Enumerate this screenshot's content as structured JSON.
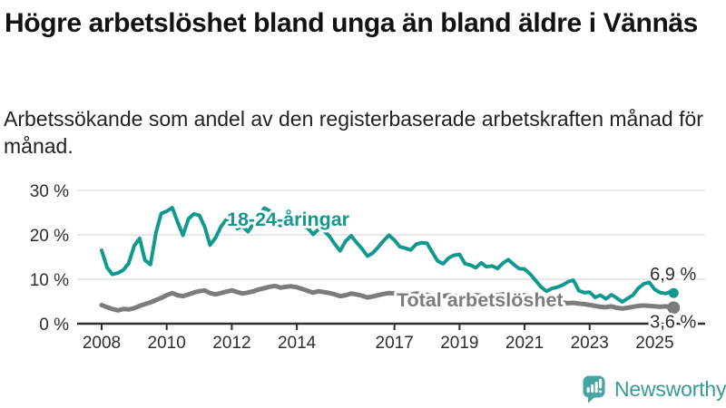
{
  "header": {
    "title": "Högre arbetslöshet bland unga än bland äldre i Vännäs",
    "subtitle": "Arbetssökande som andel av den registerbaserade arbetskraften månad för månad."
  },
  "colors": {
    "accent_teal": "#12998f",
    "line_gray": "#7c7c7c",
    "grid": "#d9d9d9",
    "axis": "#2e2e2e",
    "value_label": "#2d2d2d",
    "logo_bubble": "#47a5a1",
    "logo_text": "#379b96"
  },
  "chart_data": {
    "type": "line",
    "title": "Högre arbetslöshet bland unga än bland äldre i Vännäs",
    "subtitle": "Arbetssökande som andel av den registerbaserade arbetskraften månad för månad.",
    "grid": "horizontal",
    "legend_position": "inline-labels",
    "x_axis": {
      "ticks": [
        2008,
        2010,
        2012,
        2014,
        2017,
        2019,
        2021,
        2023,
        2025
      ],
      "labels": [
        "2008",
        "2010",
        "2012",
        "2014",
        "2017",
        "2019",
        "2021",
        "2023",
        "2025"
      ],
      "range": [
        2007.25,
        2026.3
      ]
    },
    "y_axis": {
      "ticks": [
        0,
        10,
        20,
        30
      ],
      "labels": [
        "0 %",
        "10 %",
        "20 %",
        "30 %"
      ],
      "suffix": " %",
      "range": [
        0,
        31
      ]
    },
    "series": [
      {
        "name": "18-24-åringar",
        "color": "#12998f",
        "end_label": "6,9 %",
        "end_value": 6.9,
        "points": [
          [
            2008.0,
            16.5
          ],
          [
            2008.17,
            12.6
          ],
          [
            2008.33,
            11.1
          ],
          [
            2008.5,
            11.4
          ],
          [
            2008.67,
            12.1
          ],
          [
            2008.83,
            13.6
          ],
          [
            2009.0,
            17.5
          ],
          [
            2009.17,
            19.2
          ],
          [
            2009.33,
            14.3
          ],
          [
            2009.5,
            13.3
          ],
          [
            2009.67,
            20.5
          ],
          [
            2009.83,
            24.8
          ],
          [
            2010.0,
            25.3
          ],
          [
            2010.17,
            26.1
          ],
          [
            2010.33,
            23.0
          ],
          [
            2010.5,
            19.9
          ],
          [
            2010.67,
            23.6
          ],
          [
            2010.83,
            24.7
          ],
          [
            2011.0,
            24.4
          ],
          [
            2011.17,
            21.8
          ],
          [
            2011.33,
            17.7
          ],
          [
            2011.5,
            19.3
          ],
          [
            2011.67,
            21.9
          ],
          [
            2011.83,
            23.4
          ],
          [
            2012.0,
            23.6
          ],
          [
            2012.17,
            21.4
          ],
          [
            2012.33,
            21.9
          ],
          [
            2012.5,
            20.7
          ],
          [
            2012.67,
            22.6
          ],
          [
            2012.83,
            24.4
          ],
          [
            2013.0,
            26.0
          ],
          [
            2013.17,
            25.4
          ],
          [
            2013.33,
            22.6
          ],
          [
            2013.5,
            22.1
          ],
          [
            2013.67,
            23.0
          ],
          [
            2013.83,
            24.3
          ],
          [
            2014.0,
            24.2
          ],
          [
            2014.17,
            21.9
          ],
          [
            2014.33,
            21.6
          ],
          [
            2014.5,
            20.1
          ],
          [
            2014.67,
            21.3
          ],
          [
            2014.83,
            20.9
          ],
          [
            2015.0,
            19.7
          ],
          [
            2015.17,
            17.9
          ],
          [
            2015.33,
            16.4
          ],
          [
            2015.5,
            18.6
          ],
          [
            2015.67,
            19.8
          ],
          [
            2015.83,
            18.3
          ],
          [
            2016.0,
            16.9
          ],
          [
            2016.17,
            15.2
          ],
          [
            2016.33,
            15.9
          ],
          [
            2016.5,
            17.2
          ],
          [
            2016.67,
            18.7
          ],
          [
            2016.83,
            19.9
          ],
          [
            2017.0,
            18.8
          ],
          [
            2017.17,
            17.3
          ],
          [
            2017.33,
            17.0
          ],
          [
            2017.5,
            16.6
          ],
          [
            2017.67,
            17.9
          ],
          [
            2017.83,
            18.2
          ],
          [
            2018.0,
            18.1
          ],
          [
            2018.17,
            16.0
          ],
          [
            2018.33,
            14.1
          ],
          [
            2018.5,
            13.5
          ],
          [
            2018.67,
            14.8
          ],
          [
            2018.83,
            15.4
          ],
          [
            2019.0,
            15.6
          ],
          [
            2019.17,
            13.5
          ],
          [
            2019.33,
            13.2
          ],
          [
            2019.5,
            12.6
          ],
          [
            2019.67,
            13.7
          ],
          [
            2019.83,
            12.8
          ],
          [
            2020.0,
            13.0
          ],
          [
            2020.17,
            12.4
          ],
          [
            2020.33,
            13.6
          ],
          [
            2020.5,
            14.4
          ],
          [
            2020.67,
            13.3
          ],
          [
            2020.83,
            12.4
          ],
          [
            2021.0,
            12.3
          ],
          [
            2021.17,
            11.2
          ],
          [
            2021.33,
            9.8
          ],
          [
            2021.5,
            8.3
          ],
          [
            2021.67,
            7.3
          ],
          [
            2021.83,
            7.9
          ],
          [
            2022.0,
            8.2
          ],
          [
            2022.17,
            8.7
          ],
          [
            2022.33,
            9.4
          ],
          [
            2022.5,
            9.8
          ],
          [
            2022.67,
            7.4
          ],
          [
            2022.83,
            7.0
          ],
          [
            2023.0,
            7.1
          ],
          [
            2023.17,
            5.9
          ],
          [
            2023.33,
            6.4
          ],
          [
            2023.5,
            5.6
          ],
          [
            2023.67,
            6.5
          ],
          [
            2023.83,
            5.8
          ],
          [
            2024.0,
            4.9
          ],
          [
            2024.17,
            5.7
          ],
          [
            2024.33,
            6.4
          ],
          [
            2024.5,
            8.0
          ],
          [
            2024.67,
            9.0
          ],
          [
            2024.83,
            9.3
          ],
          [
            2025.0,
            7.7
          ],
          [
            2025.17,
            7.0
          ],
          [
            2025.33,
            6.8
          ],
          [
            2025.5,
            7.2
          ],
          [
            2025.58,
            6.9
          ]
        ]
      },
      {
        "name": "Total arbetslöshet",
        "color": "#7c7c7c",
        "end_label": "3,6 %",
        "end_value": 3.6,
        "points": [
          [
            2008.0,
            4.2
          ],
          [
            2008.17,
            3.7
          ],
          [
            2008.33,
            3.3
          ],
          [
            2008.5,
            3.0
          ],
          [
            2008.67,
            3.3
          ],
          [
            2008.83,
            3.2
          ],
          [
            2009.0,
            3.5
          ],
          [
            2009.17,
            4.0
          ],
          [
            2009.33,
            4.4
          ],
          [
            2009.5,
            4.8
          ],
          [
            2009.67,
            5.3
          ],
          [
            2009.83,
            5.8
          ],
          [
            2010.0,
            6.4
          ],
          [
            2010.17,
            6.9
          ],
          [
            2010.33,
            6.4
          ],
          [
            2010.5,
            6.2
          ],
          [
            2010.67,
            6.6
          ],
          [
            2010.83,
            7.0
          ],
          [
            2011.0,
            7.3
          ],
          [
            2011.17,
            7.5
          ],
          [
            2011.33,
            6.9
          ],
          [
            2011.5,
            6.6
          ],
          [
            2011.67,
            6.9
          ],
          [
            2011.83,
            7.2
          ],
          [
            2012.0,
            7.5
          ],
          [
            2012.17,
            7.1
          ],
          [
            2012.33,
            6.8
          ],
          [
            2012.5,
            7.0
          ],
          [
            2012.67,
            7.3
          ],
          [
            2012.83,
            7.7
          ],
          [
            2013.0,
            8.0
          ],
          [
            2013.17,
            8.3
          ],
          [
            2013.33,
            8.5
          ],
          [
            2013.5,
            8.1
          ],
          [
            2013.67,
            8.3
          ],
          [
            2013.83,
            8.4
          ],
          [
            2014.0,
            8.2
          ],
          [
            2014.17,
            7.8
          ],
          [
            2014.33,
            7.4
          ],
          [
            2014.5,
            7.0
          ],
          [
            2014.67,
            7.3
          ],
          [
            2014.83,
            7.1
          ],
          [
            2015.0,
            6.9
          ],
          [
            2015.17,
            6.6
          ],
          [
            2015.33,
            6.2
          ],
          [
            2015.5,
            6.4
          ],
          [
            2015.67,
            6.8
          ],
          [
            2015.83,
            6.6
          ],
          [
            2016.0,
            6.3
          ],
          [
            2016.17,
            5.9
          ],
          [
            2016.33,
            6.1
          ],
          [
            2016.5,
            6.4
          ],
          [
            2016.67,
            6.7
          ],
          [
            2016.83,
            6.9
          ],
          [
            2017.0,
            6.8
          ],
          [
            2017.17,
            6.5
          ],
          [
            2017.33,
            6.3
          ],
          [
            2017.5,
            6.5
          ],
          [
            2017.67,
            6.8
          ],
          [
            2017.83,
            6.6
          ],
          [
            2018.0,
            6.5
          ],
          [
            2018.17,
            6.2
          ],
          [
            2018.33,
            6.0
          ],
          [
            2018.5,
            6.2
          ],
          [
            2018.67,
            6.4
          ],
          [
            2018.83,
            6.3
          ],
          [
            2019.0,
            6.1
          ],
          [
            2019.17,
            6.0
          ],
          [
            2019.33,
            6.2
          ],
          [
            2019.5,
            6.4
          ],
          [
            2019.67,
            6.3
          ],
          [
            2019.83,
            6.1
          ],
          [
            2020.0,
            6.2
          ],
          [
            2020.17,
            6.4
          ],
          [
            2020.33,
            6.6
          ],
          [
            2020.5,
            6.7
          ],
          [
            2020.67,
            6.5
          ],
          [
            2020.83,
            6.3
          ],
          [
            2021.0,
            6.4
          ],
          [
            2021.17,
            6.2
          ],
          [
            2021.33,
            6.0
          ],
          [
            2021.5,
            5.7
          ],
          [
            2021.67,
            5.4
          ],
          [
            2021.83,
            5.2
          ],
          [
            2022.0,
            5.0
          ],
          [
            2022.17,
            4.8
          ],
          [
            2022.33,
            4.6
          ],
          [
            2022.5,
            4.7
          ],
          [
            2022.67,
            4.5
          ],
          [
            2022.83,
            4.4
          ],
          [
            2023.0,
            4.2
          ],
          [
            2023.17,
            4.0
          ],
          [
            2023.33,
            3.8
          ],
          [
            2023.5,
            3.7
          ],
          [
            2023.67,
            3.9
          ],
          [
            2023.83,
            3.6
          ],
          [
            2024.0,
            3.4
          ],
          [
            2024.17,
            3.6
          ],
          [
            2024.33,
            3.8
          ],
          [
            2024.5,
            4.0
          ],
          [
            2024.67,
            4.1
          ],
          [
            2024.83,
            4.0
          ],
          [
            2025.0,
            3.9
          ],
          [
            2025.17,
            3.8
          ],
          [
            2025.33,
            3.9
          ],
          [
            2025.5,
            3.7
          ],
          [
            2025.58,
            3.6
          ]
        ]
      }
    ]
  },
  "branding": {
    "name": "Newsworthy"
  }
}
